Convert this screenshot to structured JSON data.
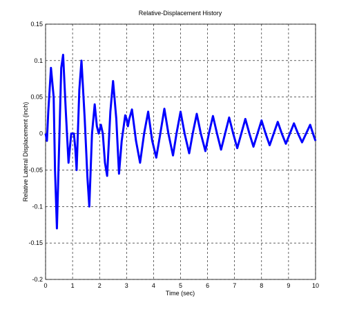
{
  "chart_data": {
    "type": "line",
    "title": "Relative-Displacement History",
    "xlabel": "Time (sec)",
    "ylabel": "Relative Lateral Displacement (inch)",
    "xlim": [
      0,
      10
    ],
    "ylim": [
      -0.2,
      0.15
    ],
    "xticks": [
      0,
      1,
      2,
      3,
      4,
      5,
      6,
      7,
      8,
      9,
      10
    ],
    "yticks": [
      -0.2,
      -0.15,
      -0.1,
      -0.05,
      0,
      0.05,
      0.1,
      0.15
    ],
    "grid": true,
    "series": [
      {
        "color": "#0000ff",
        "x": [
          0,
          0.05,
          0.1,
          0.2,
          0.3,
          0.35,
          0.42,
          0.5,
          0.58,
          0.65,
          0.75,
          0.85,
          0.95,
          1.05,
          1.1,
          1.15,
          1.25,
          1.33,
          1.45,
          1.55,
          1.62,
          1.72,
          1.82,
          1.9,
          1.97,
          2.05,
          2.12,
          2.2,
          2.28,
          2.4,
          2.5,
          2.62,
          2.72,
          2.82,
          2.95,
          3,
          3.05,
          3.1,
          3.2,
          3.35,
          3.5,
          3.65,
          3.8,
          3.95,
          4.1,
          4.25,
          4.4,
          4.55,
          4.72,
          4.85,
          5,
          5.15,
          5.32,
          5.45,
          5.6,
          5.75,
          5.92,
          6.05,
          6.2,
          6.35,
          6.5,
          6.65,
          6.8,
          6.95,
          7.1,
          7.25,
          7.4,
          7.55,
          7.7,
          7.85,
          8,
          8.15,
          8.3,
          8.45,
          8.6,
          8.75,
          8.9,
          9.05,
          9.2,
          9.35,
          9.5,
          9.65,
          9.8,
          9.95,
          10
        ],
        "values": [
          0,
          -0.01,
          0.03,
          0.09,
          0.05,
          -0.05,
          -0.13,
          -0.02,
          0.09,
          0.108,
          0.03,
          -0.04,
          0,
          0,
          -0.02,
          -0.05,
          0.06,
          0.1,
          0.02,
          -0.06,
          -0.1,
          0,
          0.04,
          0.01,
          0,
          0.012,
          0,
          -0.04,
          -0.058,
          0.03,
          0.072,
          0.02,
          -0.055,
          -0.01,
          0.025,
          0.02,
          0.01,
          0.02,
          0.033,
          -0.01,
          -0.04,
          0,
          0.03,
          -0.01,
          -0.033,
          0,
          0.034,
          0,
          -0.03,
          0,
          0.03,
          0,
          -0.027,
          0,
          0.027,
          0,
          -0.024,
          0,
          0.024,
          0,
          -0.022,
          0,
          0.022,
          0,
          -0.02,
          0,
          0.02,
          0,
          -0.018,
          0,
          0.018,
          0,
          -0.016,
          0,
          0.016,
          0,
          -0.014,
          0,
          0.014,
          0,
          -0.012,
          0,
          0.012,
          -0.005,
          -0.01
        ]
      }
    ]
  }
}
